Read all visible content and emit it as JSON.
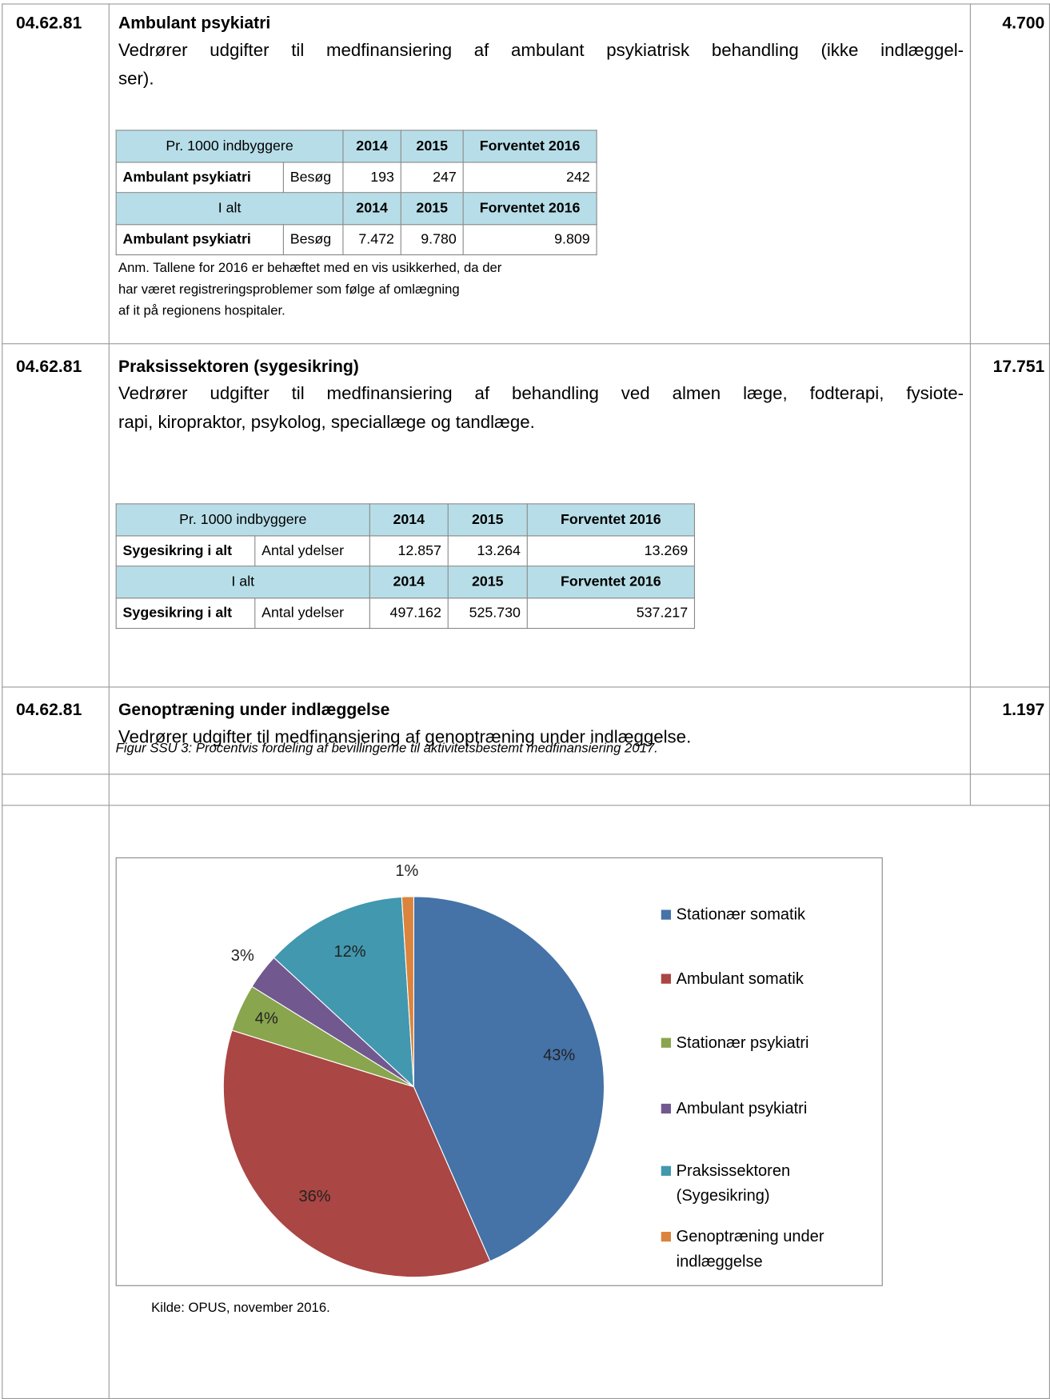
{
  "sections": [
    {
      "code": "04.62.81",
      "title": "Ambulant psykiatri",
      "amount": "4.700",
      "text": [
        "Vedrører udgifter til medfinansiering af ambulant psykiatrisk behandling (ikke indlæggel-",
        "ser)."
      ],
      "table": {
        "rows": [
          [
            "Pr. 1000 indbyggere",
            "2014",
            "2015",
            "Forventet 2016"
          ],
          [
            "Ambulant psykiatri",
            "Besøg",
            "193",
            "247",
            "242"
          ],
          [
            "I alt",
            "2014",
            "2015",
            "Forventet 2016"
          ],
          [
            "Ambulant psykiatri",
            "Besøg",
            "7.472",
            "9.780",
            "9.809"
          ]
        ]
      },
      "note": [
        "Anm. Tallene for 2016 er behæftet med en vis usikkerhed, da der",
        "har været registreringsproblemer som følge af omlægning",
        "af it på regionens hospitaler."
      ]
    },
    {
      "code": "04.62.81",
      "title": "Praksissektoren (sygesikring)",
      "amount": "17.751",
      "text": [
        "Vedrører udgifter til medfinansiering af behandling ved almen læge, fodterapi, fysiote-",
        "rapi, kiropraktor, psykolog, speciallæge og tandlæge."
      ],
      "table": {
        "rows": [
          [
            "Pr. 1000 indbyggere",
            "2014",
            "2015",
            "Forventet 2016"
          ],
          [
            "Sygesikring i alt",
            "Antal ydelser",
            "12.857",
            "13.264",
            "13.269"
          ],
          [
            "I alt",
            "2014",
            "2015",
            "Forventet 2016"
          ],
          [
            "Sygesikring i alt",
            "Antal ydelser",
            "497.162",
            "525.730",
            "537.217"
          ]
        ]
      }
    },
    {
      "code": "04.62.81",
      "title": "Genoptræning under indlæggelse",
      "amount": "1.197",
      "text": [
        "Vedrører udgifter til medfinansiering af genoptræning under indlæggelse."
      ]
    }
  ],
  "chart_data": {
    "type": "pie",
    "title": "Figur SSU 3: Procentvis fordeling af bevillingerne til aktivitetsbestemt medfinansiering 2017.",
    "categories": [
      "Stationær somatik",
      "Ambulant somatik",
      "Stationær psykiatri",
      "Ambulant psykiatri",
      "Praksissektoren (Sygesikring)",
      "Genoptræning under indlæggelse"
    ],
    "values": [
      43,
      36,
      4,
      3,
      12,
      1
    ],
    "colors": [
      "#4572a7",
      "#aa4643",
      "#89a54e",
      "#71588f",
      "#4198af",
      "#db843d"
    ],
    "legend": "right",
    "source": "Kilde: OPUS, november 2016."
  }
}
